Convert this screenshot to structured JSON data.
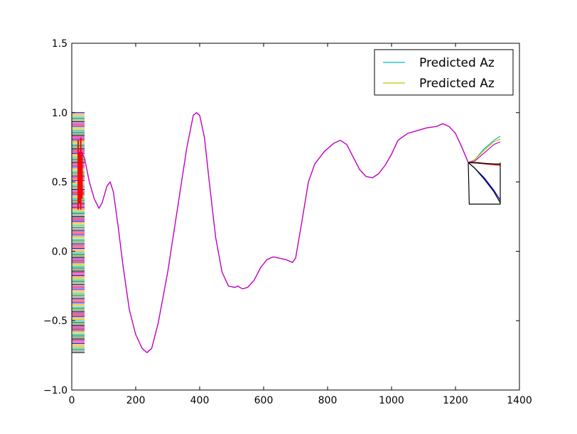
{
  "chart_data": {
    "type": "line",
    "title": "",
    "xlabel": "",
    "ylabel": "",
    "xlim": [
      0,
      1400
    ],
    "ylim": [
      -1.0,
      1.5
    ],
    "xticks": [
      0,
      200,
      400,
      600,
      800,
      1000,
      1200,
      1400
    ],
    "yticks": [
      -1.0,
      -0.5,
      0.0,
      0.5,
      1.0,
      1.5
    ],
    "xtick_labels": [
      "0",
      "200",
      "400",
      "600",
      "800",
      "1000",
      "1200",
      "1400"
    ],
    "ytick_labels": [
      "−1.0",
      "−0.5",
      "0.0",
      "0.5",
      "1.0",
      "1.5"
    ],
    "grid": false,
    "legend": {
      "placement": "top-right",
      "entries": [
        {
          "label": "Predicted Az",
          "color": "#00bfbf"
        },
        {
          "label": "Predicted Az",
          "color": "#bfbf00"
        }
      ]
    },
    "series": [
      {
        "color": "#bf00bf",
        "x": [
          30,
          40,
          55,
          70,
          85,
          95,
          110,
          120,
          130,
          145,
          160,
          180,
          200,
          220,
          235,
          250,
          270,
          300,
          330,
          360,
          380,
          390,
          400,
          415,
          430,
          450,
          470,
          490,
          510,
          520,
          525,
          535,
          550,
          570,
          590,
          610,
          630,
          650,
          670,
          690,
          700,
          720,
          740,
          760,
          790,
          820,
          840,
          860,
          880,
          900,
          920,
          940,
          960,
          980,
          1000,
          1020,
          1050,
          1080,
          1110,
          1140,
          1160,
          1180,
          1200,
          1220,
          1240
        ],
        "y": [
          0.72,
          0.67,
          0.5,
          0.38,
          0.31,
          0.35,
          0.47,
          0.5,
          0.43,
          0.18,
          -0.1,
          -0.42,
          -0.6,
          -0.7,
          -0.73,
          -0.7,
          -0.52,
          -0.15,
          0.3,
          0.75,
          0.98,
          1.0,
          0.98,
          0.82,
          0.5,
          0.1,
          -0.15,
          -0.25,
          -0.26,
          -0.25,
          -0.26,
          -0.27,
          -0.26,
          -0.21,
          -0.12,
          -0.06,
          -0.04,
          -0.05,
          -0.06,
          -0.08,
          -0.05,
          0.22,
          0.5,
          0.63,
          0.72,
          0.78,
          0.8,
          0.77,
          0.68,
          0.59,
          0.54,
          0.53,
          0.56,
          0.62,
          0.7,
          0.8,
          0.85,
          0.87,
          0.89,
          0.9,
          0.92,
          0.9,
          0.85,
          0.75,
          0.64
        ]
      },
      {
        "color": "#00bfbf",
        "x": [
          1240,
          1260,
          1290,
          1320,
          1340
        ],
        "y": [
          0.64,
          0.66,
          0.74,
          0.8,
          0.83
        ]
      },
      {
        "color": "#bfbf00",
        "x": [
          1240,
          1260,
          1290,
          1320,
          1340
        ],
        "y": [
          0.64,
          0.66,
          0.73,
          0.79,
          0.81
        ]
      },
      {
        "color": "#bf00bf",
        "x": [
          1240,
          1260,
          1290,
          1320,
          1340
        ],
        "y": [
          0.64,
          0.65,
          0.71,
          0.77,
          0.79
        ]
      },
      {
        "color": "#008000",
        "x": [
          1240,
          1270,
          1300,
          1340
        ],
        "y": [
          0.64,
          0.64,
          0.63,
          0.63
        ]
      },
      {
        "color": "#ff0000",
        "x": [
          1240,
          1270,
          1300,
          1340
        ],
        "y": [
          0.64,
          0.635,
          0.628,
          0.62
        ]
      },
      {
        "color": "#000000",
        "x": [
          1240,
          1270,
          1300,
          1340
        ],
        "y": [
          0.64,
          0.638,
          0.633,
          0.628
        ]
      },
      {
        "color": "#0000ff",
        "x": [
          1240,
          1260,
          1290,
          1320,
          1340
        ],
        "y": [
          0.64,
          0.6,
          0.53,
          0.44,
          0.37
        ]
      },
      {
        "color": "#000000",
        "x": [
          1240,
          1260,
          1290,
          1320,
          1340
        ],
        "y": [
          0.64,
          0.6,
          0.52,
          0.43,
          0.35
        ]
      },
      {
        "color": "#000000",
        "x": [
          1240,
          1243,
          1340,
          1340
        ],
        "y": [
          0.64,
          0.34,
          0.34,
          0.64
        ]
      }
    ],
    "bundle": {
      "x_range": [
        0,
        40
      ],
      "y_range": [
        -0.73,
        1.0
      ],
      "colors": [
        "#0000ff",
        "#008000",
        "#ff0000",
        "#00bfbf",
        "#bf00bf",
        "#bfbf00",
        "#000000",
        "#ff8c00",
        "#7f7f7f"
      ],
      "red_spikes": [
        {
          "x": 20,
          "y": [
            0.3,
            0.8
          ]
        },
        {
          "x": 24,
          "y": [
            0.35,
            0.72
          ]
        },
        {
          "x": 28,
          "y": [
            0.3,
            0.82
          ]
        },
        {
          "x": 32,
          "y": [
            0.38,
            0.7
          ]
        }
      ]
    }
  }
}
